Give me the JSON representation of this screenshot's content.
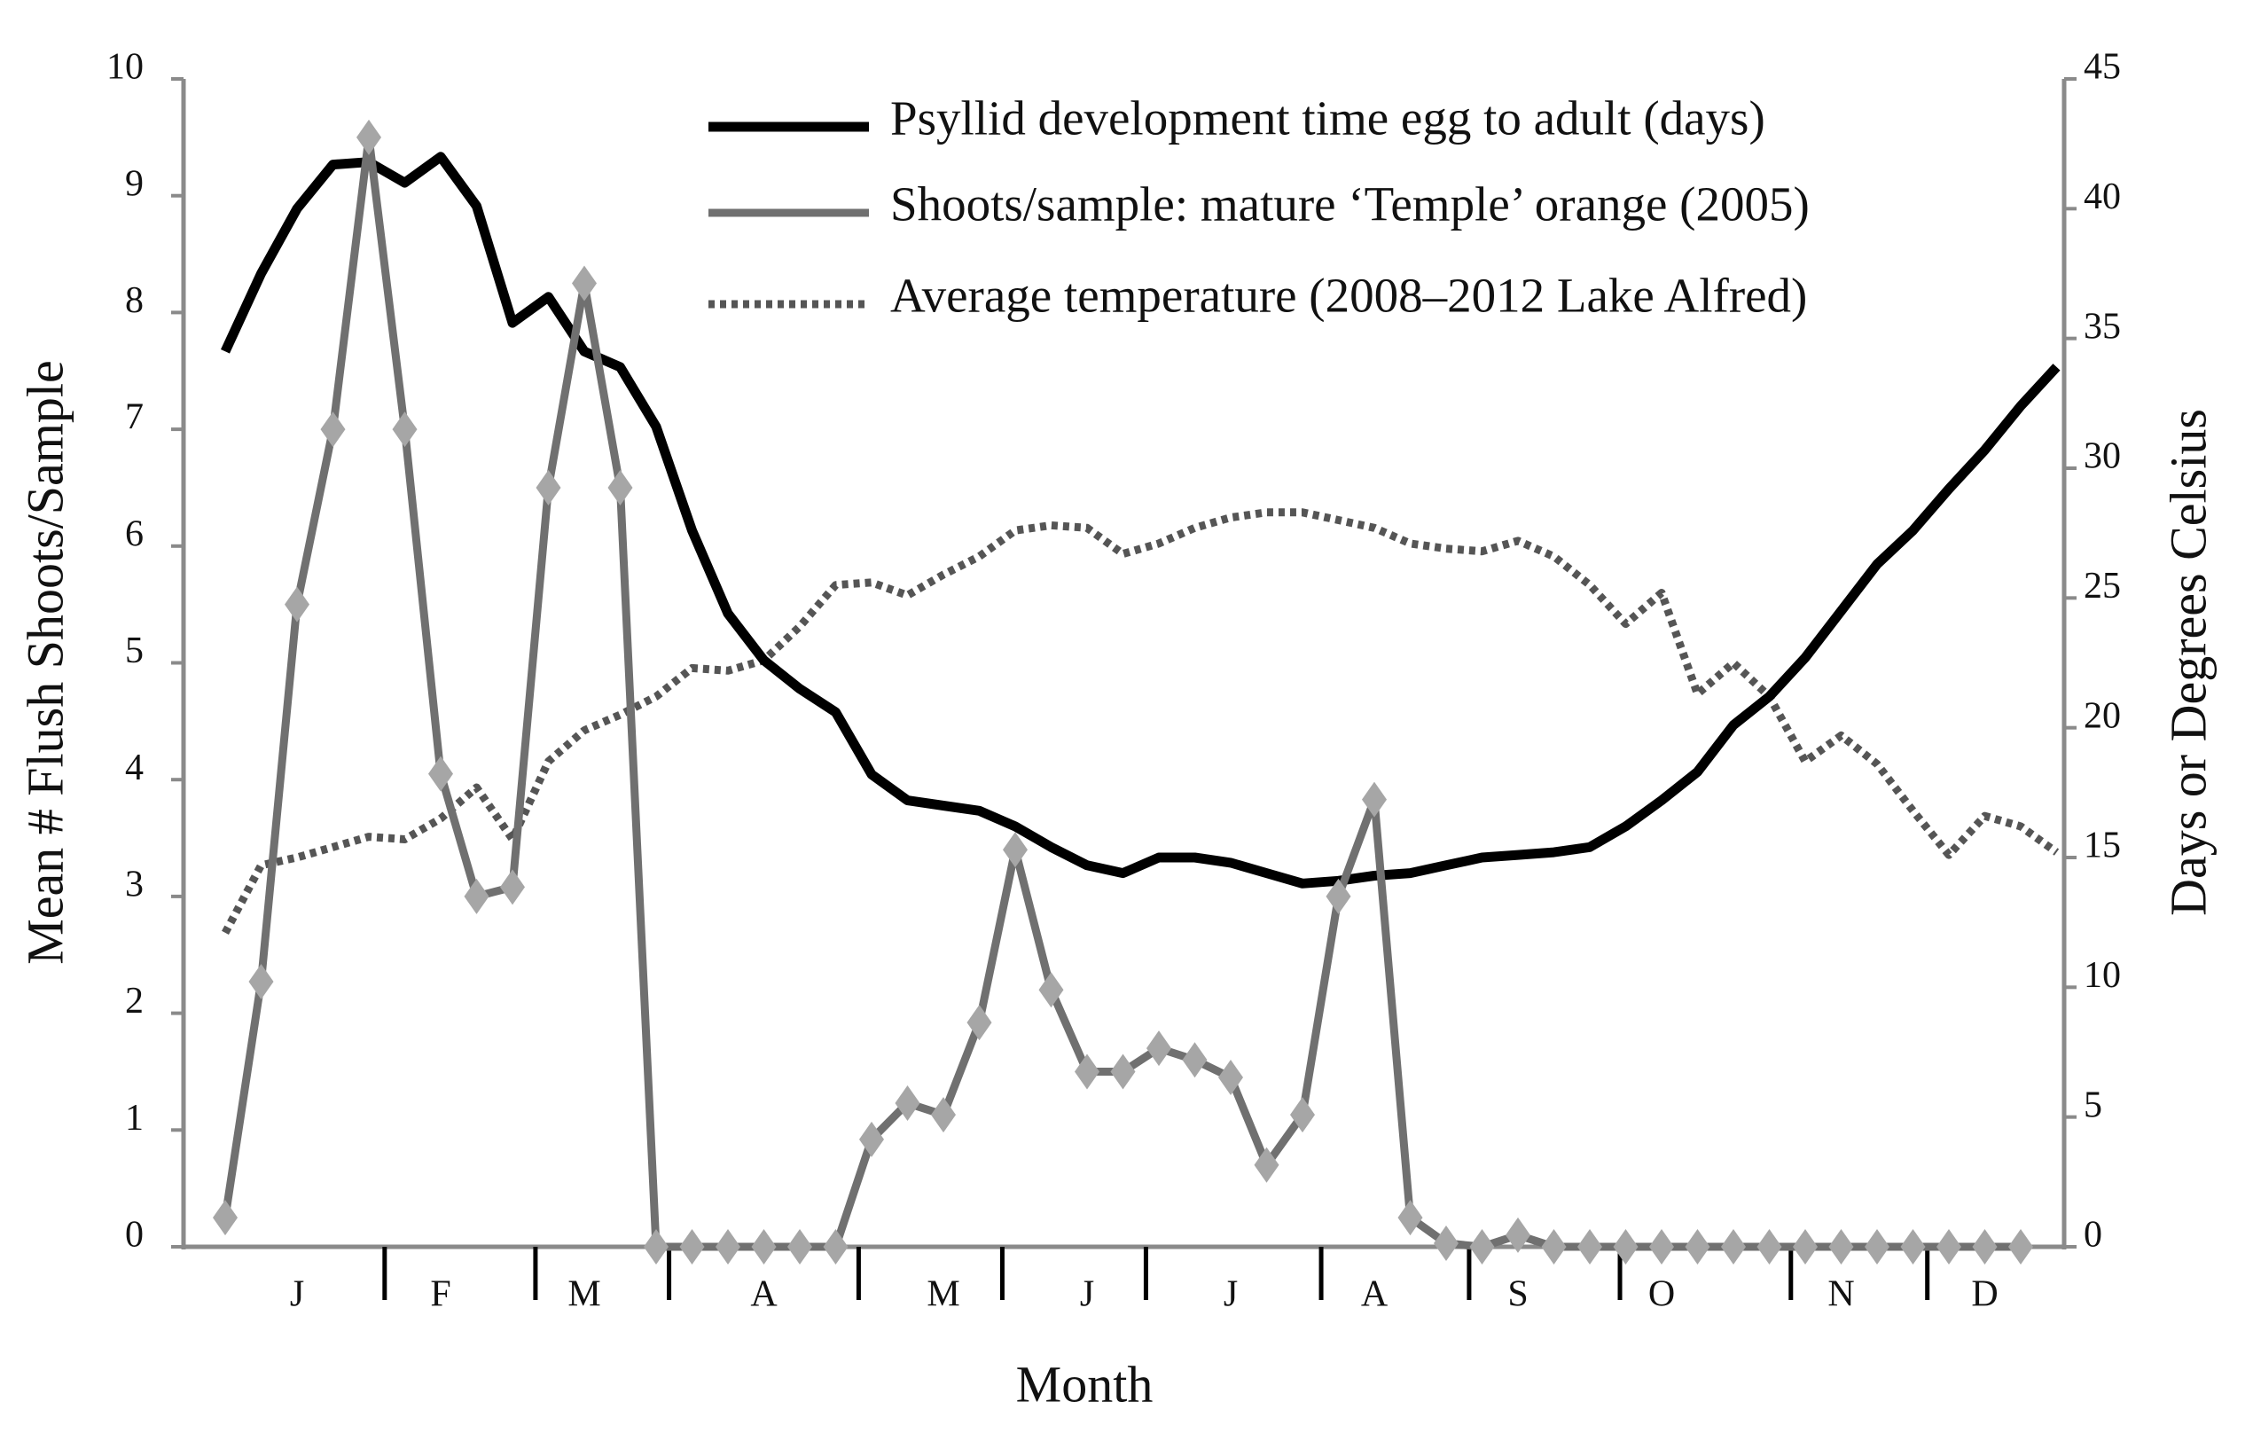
{
  "chart_data": {
    "type": "line",
    "x_label": "Month",
    "y_label": "Mean # Flush Shoots/Sample",
    "y2_label": "Days or Degrees Celsius",
    "categories": [
      null,
      null,
      "J",
      null,
      null,
      null,
      "F",
      null,
      null,
      null,
      "M",
      null,
      null,
      null,
      null,
      "A",
      null,
      null,
      null,
      null,
      "M",
      null,
      null,
      null,
      "J",
      null,
      null,
      null,
      "J",
      null,
      null,
      null,
      "A",
      null,
      null,
      null,
      "S",
      null,
      null,
      null,
      "O",
      null,
      null,
      null,
      null,
      "N",
      null,
      null,
      null,
      "D",
      null,
      null
    ],
    "ylim": [
      0,
      10
    ],
    "yticks": [
      0,
      1,
      2,
      3,
      4,
      5,
      6,
      7,
      8,
      9,
      10
    ],
    "y2lim": [
      0,
      45
    ],
    "y2ticks": [
      0,
      5,
      10,
      15,
      20,
      25,
      30,
      35,
      40,
      45
    ],
    "legend": "top",
    "series": [
      {
        "name": "Psyllid development time egg to adult (days)",
        "color": "#000000",
        "axis": "y2",
        "line_style": "solid",
        "values": [
          34.5,
          37.5,
          40,
          41.7,
          41.8,
          41.0,
          42.0,
          40.1,
          35.6,
          36.6,
          34.5,
          33.9,
          31.6,
          27.6,
          24.4,
          22.6,
          21.5,
          20.6,
          18.2,
          17.2,
          17.0,
          16.8,
          16.2,
          15.4,
          14.7,
          14.4,
          15.0,
          15.0,
          14.8,
          14.4,
          14.0,
          14.1,
          14.3,
          14.4,
          14.7,
          15.0,
          15.1,
          15.2,
          15.4,
          16.2,
          17.2,
          18.3,
          20.1,
          21.2,
          22.7,
          24.5,
          26.3,
          27.6,
          29.2,
          30.7,
          32.4,
          33.9
        ]
      },
      {
        "name": "Shoots/sample: mature ‘Temple’ orange (2005)",
        "color": "#707070",
        "marker_color": "#a6a6a6",
        "marker": "diamond",
        "line_style": "solid",
        "values": [
          0.25,
          2.27,
          5.5,
          7.0,
          9.5,
          7.0,
          4.05,
          3.0,
          3.08,
          6.5,
          8.25,
          6.5,
          0,
          0,
          0,
          0,
          0,
          0,
          0.92,
          1.23,
          1.13,
          1.92,
          3.4,
          2.2,
          1.5,
          1.5,
          1.7,
          1.6,
          1.45,
          0.7,
          1.13,
          3.0,
          3.83,
          0.25,
          0.03,
          0,
          0.1,
          0,
          0,
          0,
          0,
          0,
          0,
          0,
          0,
          0,
          0,
          0,
          0,
          0,
          0,
          null
        ]
      },
      {
        "name": "Average temperature (2008–2012 Lake Alfred)",
        "color": "#555555",
        "axis": "y2",
        "line_style": "dotted",
        "values": [
          12.1,
          14.7,
          15.0,
          15.4,
          15.8,
          15.7,
          16.5,
          17.7,
          15.7,
          18.7,
          19.9,
          20.5,
          21.2,
          22.3,
          22.2,
          22.6,
          23.9,
          25.5,
          25.6,
          25.1,
          25.9,
          26.6,
          27.6,
          27.8,
          27.7,
          26.7,
          27.1,
          27.7,
          28.1,
          28.3,
          28.3,
          28.0,
          27.7,
          27.1,
          26.9,
          26.8,
          27.2,
          26.6,
          25.5,
          24.0,
          25.2,
          21.3,
          22.5,
          21.2,
          18.7,
          19.7,
          18.6,
          16.8,
          15.1,
          16.6,
          16.2,
          15.2
        ]
      }
    ]
  }
}
